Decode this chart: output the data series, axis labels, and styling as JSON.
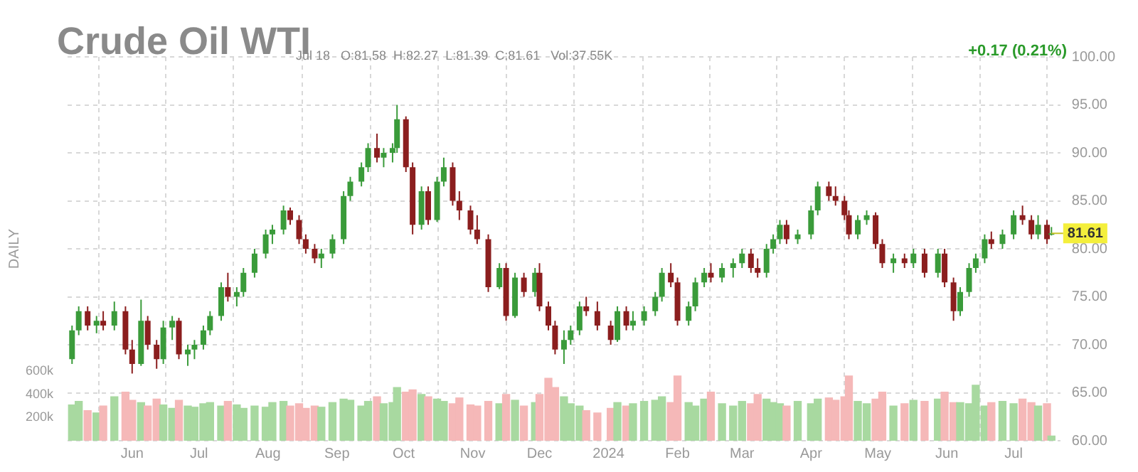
{
  "chart_data": {
    "type": "candlestick",
    "title": "Crude Oil WTI",
    "subtitle": "Jul 18   O:81.58  H:82.27  L:81.39  C:81.61   Vol:37.55K",
    "y2label": "DAILY",
    "annotations": [
      "+0.17 (0.21%)",
      {
        "text": "81.61",
        "x": "2024-07-18",
        "y": 81.61
      }
    ],
    "x": [
      "2023-05-05",
      "2023-05-08",
      "2023-05-12",
      "2023-05-16",
      "2023-05-19",
      "2023-05-24",
      "2023-05-29",
      "2023-06-01",
      "2023-06-05",
      "2023-06-08",
      "2023-06-12",
      "2023-06-15",
      "2023-06-19",
      "2023-06-22",
      "2023-06-26",
      "2023-06-29",
      "2023-07-03",
      "2023-07-06",
      "2023-07-11",
      "2023-07-14",
      "2023-07-18",
      "2023-07-21",
      "2023-07-26",
      "2023-07-31",
      "2023-08-03",
      "2023-08-08",
      "2023-08-11",
      "2023-08-15",
      "2023-08-18",
      "2023-08-22",
      "2023-08-25",
      "2023-08-30",
      "2023-09-04",
      "2023-09-07",
      "2023-09-12",
      "2023-09-15",
      "2023-09-19",
      "2023-09-22",
      "2023-09-26",
      "2023-09-28",
      "2023-10-02",
      "2023-10-05",
      "2023-10-09",
      "2023-10-12",
      "2023-10-16",
      "2023-10-19",
      "2023-10-23",
      "2023-10-26",
      "2023-10-31",
      "2023-11-03",
      "2023-11-08",
      "2023-11-13",
      "2023-11-16",
      "2023-11-20",
      "2023-11-24",
      "2023-11-29",
      "2023-12-01",
      "2023-12-05",
      "2023-12-08",
      "2023-12-12",
      "2023-12-15",
      "2023-12-19",
      "2023-12-22",
      "2023-12-27",
      "2024-01-02",
      "2024-01-05",
      "2024-01-09",
      "2024-01-12",
      "2024-01-17",
      "2024-01-22",
      "2024-01-25",
      "2024-01-29",
      "2024-02-01",
      "2024-02-06",
      "2024-02-09",
      "2024-02-13",
      "2024-02-16",
      "2024-02-21",
      "2024-02-26",
      "2024-03-01",
      "2024-03-05",
      "2024-03-08",
      "2024-03-12",
      "2024-03-15",
      "2024-03-18",
      "2024-03-21",
      "2024-03-26",
      "2024-04-01",
      "2024-04-04",
      "2024-04-09",
      "2024-04-12",
      "2024-04-16",
      "2024-04-18",
      "2024-04-22",
      "2024-04-26",
      "2024-04-30",
      "2024-05-03",
      "2024-05-08",
      "2024-05-13",
      "2024-05-17",
      "2024-05-22",
      "2024-05-28",
      "2024-05-31",
      "2024-06-04",
      "2024-06-07",
      "2024-06-11",
      "2024-06-14",
      "2024-06-18",
      "2024-06-21",
      "2024-06-26",
      "2024-07-01",
      "2024-07-05",
      "2024-07-09",
      "2024-07-12",
      "2024-07-16",
      "2024-07-18"
    ],
    "ohlc": [
      [
        68.5,
        72.0,
        68.0,
        71.5
      ],
      [
        71.5,
        74.0,
        71.0,
        73.5
      ],
      [
        73.5,
        74.0,
        71.5,
        72.0
      ],
      [
        72.0,
        73.0,
        71.2,
        72.5
      ],
      [
        72.5,
        73.5,
        71.5,
        72.0
      ],
      [
        72.0,
        74.5,
        71.5,
        73.5
      ],
      [
        73.5,
        74.0,
        69.0,
        69.5
      ],
      [
        69.5,
        70.5,
        67.0,
        68.0
      ],
      [
        68.0,
        74.7,
        67.8,
        72.5
      ],
      [
        72.5,
        73.0,
        69.5,
        70.0
      ],
      [
        70.0,
        70.5,
        67.5,
        68.5
      ],
      [
        68.5,
        72.5,
        68.0,
        71.8
      ],
      [
        71.8,
        73.0,
        70.5,
        72.5
      ],
      [
        72.5,
        72.8,
        68.5,
        69.0
      ],
      [
        69.0,
        70.0,
        67.8,
        69.5
      ],
      [
        69.5,
        70.5,
        68.5,
        70.0
      ],
      [
        70.0,
        72.0,
        69.5,
        71.5
      ],
      [
        71.5,
        73.5,
        71.0,
        73.0
      ],
      [
        73.0,
        76.5,
        72.5,
        76.0
      ],
      [
        76.0,
        77.5,
        74.5,
        75.0
      ],
      [
        75.0,
        76.0,
        74.0,
        75.5
      ],
      [
        75.5,
        78.0,
        75.0,
        77.5
      ],
      [
        77.5,
        80.0,
        77.0,
        79.5
      ],
      [
        79.5,
        82.0,
        79.0,
        81.5
      ],
      [
        81.5,
        82.5,
        80.5,
        82.0
      ],
      [
        82.0,
        84.5,
        81.5,
        84.0
      ],
      [
        84.0,
        84.3,
        82.5,
        83.0
      ],
      [
        83.0,
        83.5,
        80.5,
        81.0
      ],
      [
        81.0,
        81.5,
        79.5,
        80.0
      ],
      [
        80.0,
        80.5,
        78.5,
        79.0
      ],
      [
        79.0,
        80.0,
        78.0,
        79.5
      ],
      [
        79.5,
        81.5,
        79.0,
        81.0
      ],
      [
        81.0,
        86.0,
        80.5,
        85.5
      ],
      [
        85.5,
        87.5,
        85.0,
        87.0
      ],
      [
        87.0,
        89.0,
        86.5,
        88.5
      ],
      [
        88.5,
        91.0,
        88.0,
        90.5
      ],
      [
        90.5,
        92.0,
        89.0,
        89.5
      ],
      [
        89.5,
        90.5,
        88.5,
        90.0
      ],
      [
        90.0,
        91.0,
        89.0,
        90.5
      ],
      [
        90.5,
        95.0,
        90.0,
        93.5
      ],
      [
        93.5,
        93.8,
        88.0,
        88.5
      ],
      [
        88.5,
        89.0,
        81.5,
        82.5
      ],
      [
        82.5,
        86.5,
        82.0,
        86.0
      ],
      [
        86.0,
        86.5,
        82.5,
        83.0
      ],
      [
        83.0,
        87.5,
        82.8,
        87.0
      ],
      [
        87.0,
        89.5,
        86.5,
        88.5
      ],
      [
        88.5,
        89.0,
        84.5,
        85.0
      ],
      [
        85.0,
        86.0,
        83.0,
        84.0
      ],
      [
        84.0,
        84.5,
        81.5,
        82.0
      ],
      [
        82.0,
        83.5,
        80.5,
        81.0
      ],
      [
        81.0,
        81.5,
        75.5,
        76.0
      ],
      [
        76.0,
        78.5,
        75.8,
        78.0
      ],
      [
        78.0,
        78.5,
        72.5,
        73.0
      ],
      [
        73.0,
        77.5,
        72.8,
        77.0
      ],
      [
        77.0,
        77.5,
        75.0,
        75.5
      ],
      [
        75.5,
        78.0,
        75.0,
        77.5
      ],
      [
        77.5,
        78.5,
        73.5,
        74.0
      ],
      [
        74.0,
        74.5,
        71.5,
        72.0
      ],
      [
        72.0,
        72.5,
        69.0,
        69.5
      ],
      [
        69.5,
        71.5,
        68.0,
        70.5
      ],
      [
        70.5,
        72.0,
        70.0,
        71.5
      ],
      [
        71.5,
        74.5,
        71.0,
        74.0
      ],
      [
        74.0,
        75.0,
        73.0,
        73.5
      ],
      [
        73.5,
        74.5,
        71.5,
        72.0
      ],
      [
        72.0,
        72.5,
        70.0,
        70.5
      ],
      [
        70.5,
        74.0,
        70.3,
        73.5
      ],
      [
        73.5,
        74.0,
        71.5,
        72.0
      ],
      [
        72.0,
        73.5,
        71.5,
        72.5
      ],
      [
        72.5,
        74.0,
        72.0,
        73.5
      ],
      [
        73.5,
        75.5,
        73.0,
        75.0
      ],
      [
        75.0,
        78.0,
        74.5,
        77.5
      ],
      [
        77.5,
        78.5,
        76.0,
        76.5
      ],
      [
        76.5,
        77.0,
        72.0,
        72.5
      ],
      [
        72.5,
        74.5,
        72.0,
        74.0
      ],
      [
        74.0,
        77.0,
        73.5,
        76.5
      ],
      [
        76.5,
        78.0,
        76.0,
        77.5
      ],
      [
        77.5,
        78.5,
        76.5,
        77.0
      ],
      [
        77.0,
        78.5,
        76.5,
        78.0
      ],
      [
        78.0,
        79.0,
        77.0,
        78.5
      ],
      [
        78.5,
        80.0,
        78.0,
        79.5
      ],
      [
        79.5,
        80.0,
        77.5,
        78.0
      ],
      [
        78.0,
        79.0,
        77.0,
        77.5
      ],
      [
        77.5,
        80.5,
        77.0,
        80.0
      ],
      [
        80.0,
        81.5,
        79.5,
        81.0
      ],
      [
        81.0,
        83.0,
        80.5,
        82.5
      ],
      [
        82.5,
        83.0,
        80.5,
        81.0
      ],
      [
        81.0,
        82.0,
        80.5,
        81.5
      ],
      [
        81.5,
        84.5,
        81.0,
        84.0
      ],
      [
        84.0,
        87.0,
        83.5,
        86.5
      ],
      [
        86.5,
        87.0,
        85.0,
        85.5
      ],
      [
        85.5,
        86.5,
        84.5,
        85.0
      ],
      [
        85.0,
        85.5,
        83.0,
        83.5
      ],
      [
        83.5,
        84.0,
        81.0,
        81.5
      ],
      [
        81.5,
        83.5,
        81.0,
        83.0
      ],
      [
        83.0,
        84.0,
        82.5,
        83.5
      ],
      [
        83.5,
        83.8,
        80.0,
        80.5
      ],
      [
        80.5,
        81.0,
        78.0,
        78.5
      ],
      [
        78.5,
        79.5,
        77.5,
        79.0
      ],
      [
        79.0,
        79.5,
        78.0,
        78.5
      ],
      [
        78.5,
        80.0,
        78.0,
        79.5
      ],
      [
        79.5,
        80.0,
        77.0,
        77.5
      ],
      [
        77.5,
        80.0,
        77.0,
        79.5
      ],
      [
        79.5,
        80.0,
        76.0,
        76.5
      ],
      [
        76.5,
        77.0,
        72.5,
        73.5
      ],
      [
        73.5,
        76.0,
        73.0,
        75.5
      ],
      [
        75.5,
        78.5,
        75.0,
        78.0
      ],
      [
        78.0,
        79.5,
        77.5,
        79.0
      ],
      [
        79.0,
        81.5,
        78.5,
        81.0
      ],
      [
        81.0,
        81.8,
        80.0,
        80.5
      ],
      [
        80.5,
        82.0,
        80.0,
        81.5
      ],
      [
        81.5,
        84.0,
        81.0,
        83.5
      ],
      [
        83.5,
        84.5,
        82.5,
        83.0
      ],
      [
        83.0,
        83.5,
        81.0,
        81.5
      ],
      [
        81.5,
        83.5,
        81.0,
        82.5
      ],
      [
        82.5,
        83.0,
        80.5,
        81.0
      ],
      [
        81.58,
        82.27,
        81.39,
        81.61
      ]
    ],
    "colors": [
      "#3a9b3a",
      "#3a9b3a",
      "#8b1e1e",
      "#3a9b3a",
      "#8b1e1e",
      "#3a9b3a",
      "#8b1e1e",
      "#8b1e1e",
      "#3a9b3a",
      "#8b1e1e",
      "#8b1e1e",
      "#3a9b3a",
      "#3a9b3a",
      "#8b1e1e",
      "#3a9b3a",
      "#3a9b3a",
      "#3a9b3a",
      "#3a9b3a",
      "#3a9b3a",
      "#8b1e1e",
      "#3a9b3a",
      "#3a9b3a",
      "#3a9b3a",
      "#3a9b3a",
      "#3a9b3a",
      "#3a9b3a",
      "#8b1e1e",
      "#8b1e1e",
      "#8b1e1e",
      "#8b1e1e",
      "#3a9b3a",
      "#3a9b3a",
      "#3a9b3a",
      "#3a9b3a",
      "#3a9b3a",
      "#3a9b3a",
      "#8b1e1e",
      "#3a9b3a",
      "#3a9b3a",
      "#3a9b3a",
      "#8b1e1e",
      "#8b1e1e",
      "#3a9b3a",
      "#8b1e1e",
      "#3a9b3a",
      "#3a9b3a",
      "#8b1e1e",
      "#8b1e1e",
      "#8b1e1e",
      "#8b1e1e",
      "#8b1e1e",
      "#3a9b3a",
      "#8b1e1e",
      "#3a9b3a",
      "#8b1e1e",
      "#3a9b3a",
      "#8b1e1e",
      "#8b1e1e",
      "#8b1e1e",
      "#3a9b3a",
      "#3a9b3a",
      "#3a9b3a",
      "#8b1e1e",
      "#8b1e1e",
      "#8b1e1e",
      "#3a9b3a",
      "#8b1e1e",
      "#3a9b3a",
      "#3a9b3a",
      "#3a9b3a",
      "#3a9b3a",
      "#8b1e1e",
      "#8b1e1e",
      "#3a9b3a",
      "#3a9b3a",
      "#3a9b3a",
      "#8b1e1e",
      "#3a9b3a",
      "#3a9b3a",
      "#3a9b3a",
      "#8b1e1e",
      "#8b1e1e",
      "#3a9b3a",
      "#3a9b3a",
      "#3a9b3a",
      "#8b1e1e",
      "#3a9b3a",
      "#3a9b3a",
      "#3a9b3a",
      "#8b1e1e",
      "#8b1e1e",
      "#8b1e1e",
      "#8b1e1e",
      "#3a9b3a",
      "#3a9b3a",
      "#8b1e1e",
      "#8b1e1e",
      "#3a9b3a",
      "#8b1e1e",
      "#3a9b3a",
      "#8b1e1e",
      "#3a9b3a",
      "#8b1e1e",
      "#8b1e1e",
      "#3a9b3a",
      "#3a9b3a",
      "#3a9b3a",
      "#3a9b3a",
      "#8b1e1e",
      "#3a9b3a",
      "#3a9b3a",
      "#8b1e1e",
      "#8b1e1e",
      "#3a9b3a",
      "#8b1e1e",
      "#3a9b3a"
    ],
    "series": [
      {
        "type": "bar",
        "axis": "y2",
        "values": [
          310000,
          340000,
          260000,
          240000,
          300000,
          380000,
          420000,
          350000,
          330000,
          300000,
          360000,
          310000,
          280000,
          350000,
          300000,
          290000,
          320000,
          330000,
          300000,
          340000,
          310000,
          280000,
          300000,
          290000,
          330000,
          340000,
          300000,
          320000,
          280000,
          300000,
          290000,
          330000,
          360000,
          350000,
          300000,
          340000,
          380000,
          320000,
          330000,
          460000,
          420000,
          440000,
          400000,
          380000,
          360000,
          340000,
          320000,
          370000,
          310000,
          300000,
          340000,
          320000,
          400000,
          350000,
          300000,
          330000,
          400000,
          540000,
          460000,
          380000,
          320000,
          300000,
          260000,
          240000,
          280000,
          330000,
          300000,
          320000,
          340000,
          350000,
          380000,
          330000,
          560000,
          330000,
          300000,
          360000,
          420000,
          320000,
          300000,
          340000,
          320000,
          400000,
          360000,
          330000,
          320000,
          300000,
          340000,
          320000,
          360000,
          370000,
          350000,
          380000,
          560000,
          340000,
          320000,
          360000,
          420000,
          300000,
          320000,
          350000,
          340000,
          360000,
          420000,
          330000,
          330000,
          320000,
          480000,
          300000,
          330000,
          340000,
          320000,
          360000,
          330000,
          300000,
          320000,
          40000
        ],
        "colors": [
          "#a8d9a0",
          "#a8d9a0",
          "#f5b8b8",
          "#a8d9a0",
          "#f5b8b8",
          "#a8d9a0",
          "#f5b8b8",
          "#f5b8b8",
          "#a8d9a0",
          "#f5b8b8",
          "#f5b8b8",
          "#a8d9a0",
          "#a8d9a0",
          "#f5b8b8",
          "#a8d9a0",
          "#a8d9a0",
          "#a8d9a0",
          "#a8d9a0",
          "#a8d9a0",
          "#f5b8b8",
          "#a8d9a0",
          "#a8d9a0",
          "#a8d9a0",
          "#a8d9a0",
          "#a8d9a0",
          "#a8d9a0",
          "#f5b8b8",
          "#f5b8b8",
          "#f5b8b8",
          "#f5b8b8",
          "#a8d9a0",
          "#a8d9a0",
          "#a8d9a0",
          "#a8d9a0",
          "#a8d9a0",
          "#a8d9a0",
          "#f5b8b8",
          "#a8d9a0",
          "#a8d9a0",
          "#a8d9a0",
          "#f5b8b8",
          "#f5b8b8",
          "#a8d9a0",
          "#f5b8b8",
          "#a8d9a0",
          "#a8d9a0",
          "#f5b8b8",
          "#f5b8b8",
          "#f5b8b8",
          "#f5b8b8",
          "#f5b8b8",
          "#a8d9a0",
          "#f5b8b8",
          "#a8d9a0",
          "#f5b8b8",
          "#a8d9a0",
          "#f5b8b8",
          "#f5b8b8",
          "#f5b8b8",
          "#a8d9a0",
          "#a8d9a0",
          "#a8d9a0",
          "#f5b8b8",
          "#f5b8b8",
          "#f5b8b8",
          "#a8d9a0",
          "#f5b8b8",
          "#a8d9a0",
          "#a8d9a0",
          "#a8d9a0",
          "#a8d9a0",
          "#f5b8b8",
          "#f5b8b8",
          "#a8d9a0",
          "#a8d9a0",
          "#a8d9a0",
          "#f5b8b8",
          "#a8d9a0",
          "#a8d9a0",
          "#a8d9a0",
          "#f5b8b8",
          "#f5b8b8",
          "#a8d9a0",
          "#a8d9a0",
          "#a8d9a0",
          "#f5b8b8",
          "#a8d9a0",
          "#a8d9a0",
          "#a8d9a0",
          "#f5b8b8",
          "#f5b8b8",
          "#f5b8b8",
          "#f5b8b8",
          "#a8d9a0",
          "#a8d9a0",
          "#f5b8b8",
          "#f5b8b8",
          "#a8d9a0",
          "#f5b8b8",
          "#a8d9a0",
          "#f5b8b8",
          "#a8d9a0",
          "#f5b8b8",
          "#f5b8b8",
          "#a8d9a0",
          "#a8d9a0",
          "#a8d9a0",
          "#a8d9a0",
          "#f5b8b8",
          "#a8d9a0",
          "#a8d9a0",
          "#f5b8b8",
          "#f5b8b8",
          "#a8d9a0",
          "#f5b8b8",
          "#a8d9a0"
        ]
      }
    ],
    "xlim": [
      "2023-05-03",
      "2024-07-22"
    ],
    "xticks": [
      {
        "value": "2023-06-01",
        "label": "Jun"
      },
      {
        "value": "2023-07-01",
        "label": "Jul"
      },
      {
        "value": "2023-08-01",
        "label": "Aug"
      },
      {
        "value": "2023-09-01",
        "label": "Sep"
      },
      {
        "value": "2023-10-01",
        "label": "Oct"
      },
      {
        "value": "2023-11-01",
        "label": "Nov"
      },
      {
        "value": "2023-12-01",
        "label": "Dec"
      },
      {
        "value": "2024-01-01",
        "label": "2024"
      },
      {
        "value": "2024-02-01",
        "label": "Feb"
      },
      {
        "value": "2024-03-01",
        "label": "Mar"
      },
      {
        "value": "2024-04-01",
        "label": "Apr"
      },
      {
        "value": "2024-05-01",
        "label": "May"
      },
      {
        "value": "2024-06-01",
        "label": "Jun"
      },
      {
        "value": "2024-07-01",
        "label": "Jul"
      }
    ],
    "ylim": [
      60,
      100
    ],
    "yticks": [
      {
        "value": 60,
        "label": "60.00"
      },
      {
        "value": 65,
        "label": "65.00"
      },
      {
        "value": 70,
        "label": "70.00"
      },
      {
        "value": 75,
        "label": "75.00"
      },
      {
        "value": 80,
        "label": "80.00"
      },
      {
        "value": 85,
        "label": "85.00"
      },
      {
        "value": 90,
        "label": "90.00"
      },
      {
        "value": 95,
        "label": "95.00"
      },
      {
        "value": 100,
        "label": "100.00"
      }
    ],
    "y2lim": [
      0,
      3320000
    ],
    "y2ticks": [
      {
        "value": 200000,
        "label": "200k"
      },
      {
        "value": 400000,
        "label": "400k"
      },
      {
        "value": 600000,
        "label": "600k"
      }
    ],
    "grid": true,
    "legend": false
  }
}
